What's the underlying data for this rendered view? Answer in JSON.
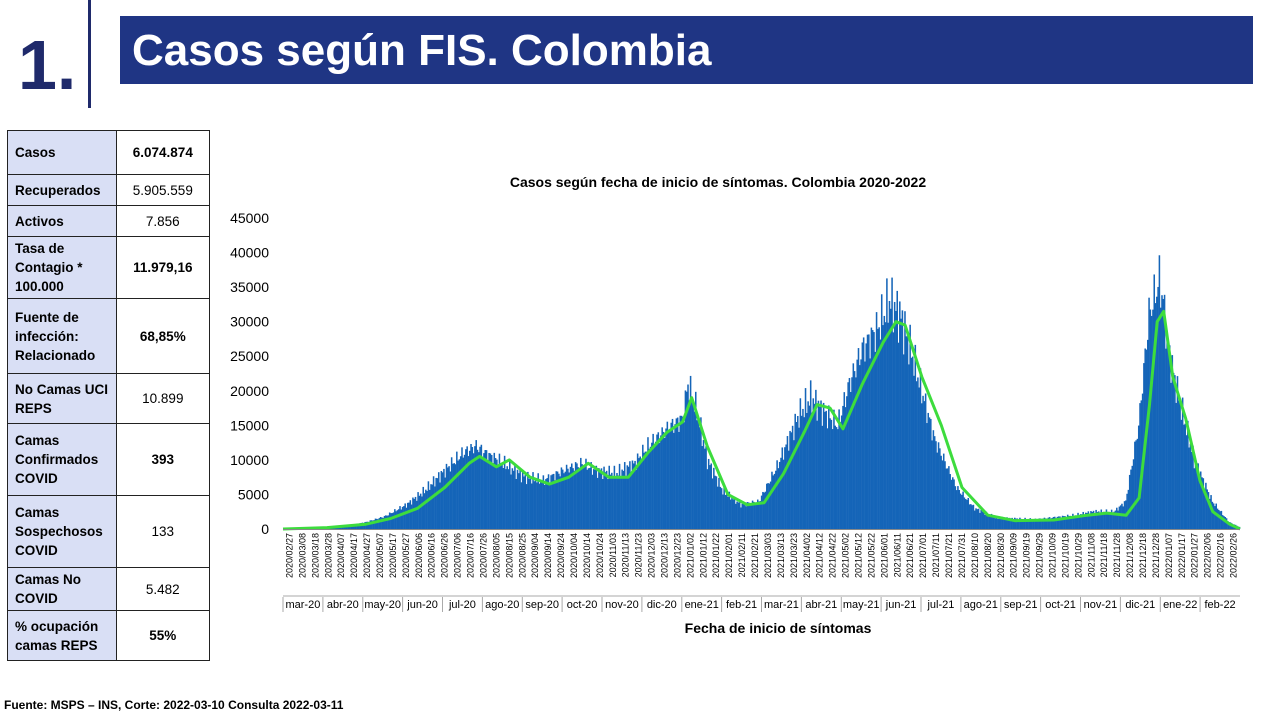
{
  "header": {
    "slide_number": "1.",
    "title": "Casos según FIS. Colombia"
  },
  "stats": [
    {
      "label": "Casos",
      "value": "6.074.874",
      "bold": true
    },
    {
      "label": "Recuperados",
      "value": "5.905.559",
      "bold": false
    },
    {
      "label": "Activos",
      "value": "7.856",
      "bold": false
    },
    {
      "label": "Tasa de Contagio * 100.000",
      "value": "11.979,16",
      "bold": true
    },
    {
      "label": "Fuente de infección: Relacionado",
      "value": "68,85%",
      "bold": true
    },
    {
      "label": "No Camas UCI REPS",
      "value": "10.899",
      "bold": false
    },
    {
      "label": "Camas Confirmados COVID",
      "value": "393",
      "bold": true
    },
    {
      "label": "Camas Sospechosos COVID",
      "value": "133",
      "bold": false
    },
    {
      "label": "Camas No COVID",
      "value": "5.482",
      "bold": false
    },
    {
      "label": "% ocupación camas REPS",
      "value": "55%",
      "bold": true
    }
  ],
  "source": "Fuente: MSPS – INS, Corte: 2022-03-10 Consulta 2022-03-11",
  "colors": {
    "banner": "#1f3584",
    "bars": "#1565b8",
    "trend": "#3ddc3d",
    "table_label_bg": "#d9dff5"
  },
  "chart_data": {
    "type": "bar",
    "title": "Casos según fecha de inicio de síntomas. Colombia 2020-2022",
    "xlabel": "Fecha de inicio de síntomas",
    "ylabel": "",
    "ylim": [
      0,
      45000
    ],
    "yticks": [
      0,
      5000,
      10000,
      15000,
      20000,
      25000,
      30000,
      35000,
      40000,
      45000
    ],
    "date_range": [
      "2020-02-27",
      "2022-03-08"
    ],
    "date_tick_labels": [
      "2020/02/27",
      "2020/03/08",
      "2020/03/18",
      "2020/03/28",
      "2020/04/07",
      "2020/04/17",
      "2020/04/27",
      "2020/05/07",
      "2020/05/17",
      "2020/05/27",
      "2020/06/06",
      "2020/06/16",
      "2020/06/26",
      "2020/07/06",
      "2020/07/16",
      "2020/07/26",
      "2020/08/05",
      "2020/08/15",
      "2020/08/25",
      "2020/09/04",
      "2020/09/14",
      "2020/09/24",
      "2020/10/04",
      "2020/10/14",
      "2020/10/24",
      "2020/11/03",
      "2020/11/13",
      "2020/11/23",
      "2020/12/03",
      "2020/12/13",
      "2020/12/23",
      "2021/01/02",
      "2021/01/12",
      "2021/01/22",
      "2021/02/01",
      "2021/02/11",
      "2021/02/21",
      "2021/03/03",
      "2021/03/13",
      "2021/03/23",
      "2021/04/02",
      "2021/04/12",
      "2021/04/22",
      "2021/05/02",
      "2021/05/12",
      "2021/05/22",
      "2021/06/01",
      "2021/06/11",
      "2021/06/21",
      "2021/07/01",
      "2021/07/11",
      "2021/07/21",
      "2021/07/31",
      "2021/08/10",
      "2021/08/20",
      "2021/08/30",
      "2021/09/09",
      "2021/09/19",
      "2021/09/29",
      "2021/10/09",
      "2021/10/19",
      "2021/10/29",
      "2021/11/08",
      "2021/11/18",
      "2021/11/28",
      "2021/12/08",
      "2021/12/18",
      "2021/12/28",
      "2022/01/07",
      "2022/01/17",
      "2022/01/27",
      "2022/02/06",
      "2022/02/16",
      "2022/02/26"
    ],
    "month_labels": [
      "mar-20",
      "abr-20",
      "may-20",
      "jun-20",
      "jul-20",
      "ago-20",
      "sep-20",
      "oct-20",
      "nov-20",
      "dic-20",
      "ene-21",
      "feb-21",
      "mar-21",
      "abr-21",
      "may-21",
      "jun-21",
      "jul-21",
      "ago-21",
      "sep-21",
      "oct-21",
      "nov-21",
      "dic-21",
      "ene-22",
      "feb-22"
    ],
    "series": [
      {
        "type": "bar",
        "x": [
          "2020-02-27",
          "2020-03-15",
          "2020-04-01",
          "2020-04-15",
          "2020-05-01",
          "2020-05-15",
          "2020-06-01",
          "2020-06-15",
          "2020-07-01",
          "2020-07-15",
          "2020-07-25",
          "2020-08-01",
          "2020-08-15",
          "2020-09-01",
          "2020-09-15",
          "2020-10-01",
          "2020-10-15",
          "2020-10-25",
          "2020-11-10",
          "2020-11-25",
          "2020-12-05",
          "2020-12-20",
          "2021-01-01",
          "2021-01-05",
          "2021-01-12",
          "2021-01-20",
          "2021-02-01",
          "2021-02-15",
          "2021-03-01",
          "2021-03-15",
          "2021-04-01",
          "2021-04-10",
          "2021-04-20",
          "2021-05-01",
          "2021-05-10",
          "2021-05-20",
          "2021-06-01",
          "2021-06-10",
          "2021-06-18",
          "2021-06-25",
          "2021-07-05",
          "2021-07-15",
          "2021-08-01",
          "2021-08-15",
          "2021-09-01",
          "2021-10-01",
          "2021-11-01",
          "2021-11-15",
          "2021-12-01",
          "2021-12-10",
          "2021-12-20",
          "2021-12-28",
          "2022-01-05",
          "2022-01-08",
          "2022-01-12",
          "2022-01-20",
          "2022-02-01",
          "2022-02-15",
          "2022-02-28",
          "2022-03-08"
        ],
        "values": [
          0,
          50,
          200,
          400,
          1000,
          1800,
          3500,
          5500,
          8500,
          11000,
          12000,
          11000,
          9500,
          7500,
          7000,
          8500,
          9500,
          8500,
          8000,
          9500,
          12000,
          14500,
          16000,
          21000,
          17000,
          10000,
          5500,
          3500,
          4000,
          9000,
          16500,
          19000,
          17000,
          15000,
          21000,
          26000,
          29000,
          33000,
          31000,
          27000,
          20000,
          13000,
          6000,
          3000,
          1600,
          1400,
          2000,
          2500,
          2500,
          4000,
          15000,
          31000,
          36000,
          33000,
          26000,
          19000,
          10000,
          4000,
          1000,
          300
        ]
      },
      {
        "type": "line",
        "x": [
          "2020-02-27",
          "2020-04-01",
          "2020-05-01",
          "2020-05-20",
          "2020-06-10",
          "2020-07-01",
          "2020-07-20",
          "2020-07-28",
          "2020-08-10",
          "2020-08-20",
          "2020-09-05",
          "2020-09-20",
          "2020-10-05",
          "2020-10-20",
          "2020-11-05",
          "2020-11-20",
          "2020-12-05",
          "2020-12-20",
          "2021-01-01",
          "2021-01-08",
          "2021-01-20",
          "2021-02-05",
          "2021-02-20",
          "2021-03-05",
          "2021-03-20",
          "2021-04-05",
          "2021-04-15",
          "2021-04-25",
          "2021-05-05",
          "2021-05-20",
          "2021-06-05",
          "2021-06-15",
          "2021-06-22",
          "2021-07-05",
          "2021-07-20",
          "2021-08-05",
          "2021-08-25",
          "2021-09-15",
          "2021-10-15",
          "2021-11-10",
          "2021-11-25",
          "2021-12-10",
          "2021-12-20",
          "2021-12-28",
          "2022-01-03",
          "2022-01-08",
          "2022-01-15",
          "2022-01-25",
          "2022-02-05",
          "2022-02-15",
          "2022-02-28",
          "2022-03-08"
        ],
        "values": [
          0,
          200,
          700,
          1500,
          3000,
          6000,
          9500,
          10500,
          9000,
          10000,
          7500,
          6500,
          7500,
          9500,
          7500,
          7500,
          11000,
          14000,
          15500,
          19000,
          12000,
          5000,
          3500,
          3800,
          8000,
          14000,
          18000,
          17500,
          14500,
          21000,
          27000,
          30000,
          29500,
          22000,
          15000,
          6000,
          2000,
          1200,
          1300,
          2000,
          2300,
          2000,
          4500,
          18000,
          30000,
          31500,
          22000,
          16000,
          7000,
          2500,
          700,
          0
        ]
      }
    ]
  }
}
